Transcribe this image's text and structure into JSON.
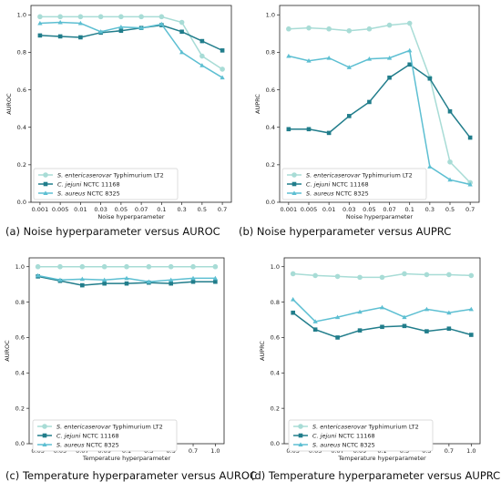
{
  "panels": [
    {
      "caption": "(a) Noise hyperparameter versus AUROC",
      "chart_data": {
        "type": "line",
        "xlabel": "Noise hyperparameter",
        "ylabel": "AUROC",
        "categories": [
          "0.001",
          "0.005",
          "0.01",
          "0.03",
          "0.05",
          "0.07",
          "0.1",
          "0.3",
          "0.5",
          "0.7"
        ],
        "ylim": [
          0,
          1.05
        ],
        "yticks": [
          "0.0",
          "0.2",
          "0.4",
          "0.6",
          "0.8",
          "1.0"
        ],
        "grid": false,
        "legend_position": "lower-left",
        "series": [
          {
            "name_italic": "S. entericaserovar",
            "name_rest": " Typhimurium LT2",
            "marker": "circle",
            "color": "#a8dcd6",
            "values": [
              0.99,
              0.99,
              0.99,
              0.99,
              0.99,
              0.99,
              0.99,
              0.96,
              0.78,
              0.71
            ]
          },
          {
            "name_italic": "C. jejuni",
            "name_rest": " NCTC 11168",
            "marker": "square",
            "color": "#217d8b",
            "values": [
              0.89,
              0.885,
              0.88,
              0.905,
              0.915,
              0.93,
              0.945,
              0.91,
              0.86,
              0.81
            ]
          },
          {
            "name_italic": "S. aureus",
            "name_rest": " NCTC 8325",
            "marker": "triangle",
            "color": "#5dbfd2",
            "values": [
              0.955,
              0.96,
              0.955,
              0.91,
              0.935,
              0.93,
              0.95,
              0.8,
              0.73,
              0.665
            ]
          }
        ]
      }
    },
    {
      "caption": "(b) Noise hyperparameter versus AUPRC",
      "chart_data": {
        "type": "line",
        "xlabel": "Noise hyperparameter",
        "ylabel": "AUPRC",
        "categories": [
          "0.001",
          "0.005",
          "0.01",
          "0.03",
          "0.05",
          "0.07",
          "0.1",
          "0.3",
          "0.5",
          "0.7"
        ],
        "ylim": [
          0.0,
          1.05
        ],
        "yticks": [
          "0.0",
          "0.2",
          "0.4",
          "0.6",
          "0.8",
          "1.0"
        ],
        "grid": false,
        "legend_position": "lower-left",
        "series": [
          {
            "name_italic": "S. entericaserovar",
            "name_rest": " Typhimurium LT2",
            "marker": "circle",
            "color": "#a8dcd6",
            "values": [
              0.925,
              0.93,
              0.925,
              0.915,
              0.925,
              0.945,
              0.955,
              0.665,
              0.215,
              0.105
            ]
          },
          {
            "name_italic": "C. jejuni",
            "name_rest": " NCTC 11168",
            "marker": "square",
            "color": "#217d8b",
            "values": [
              0.39,
              0.39,
              0.37,
              0.46,
              0.535,
              0.665,
              0.735,
              0.66,
              0.485,
              0.345
            ]
          },
          {
            "name_italic": "S. aureus",
            "name_rest": " NCTC 8325",
            "marker": "triangle",
            "color": "#5dbfd2",
            "values": [
              0.78,
              0.755,
              0.77,
              0.72,
              0.765,
              0.77,
              0.81,
              0.19,
              0.12,
              0.095
            ]
          }
        ]
      }
    },
    {
      "caption": "(c) Temperature hyperparameter versus AUROC",
      "chart_data": {
        "type": "line",
        "xlabel": "Temperature hyperparameter",
        "ylabel": "AUROC",
        "categories": [
          "0.03",
          "0.05",
          "0.07",
          "0.09",
          "0.1",
          "0.3",
          "0.5",
          "0.7",
          "1.0"
        ],
        "ylim": [
          0,
          1.05
        ],
        "yticks": [
          "0.0",
          "0.2",
          "0.4",
          "0.6",
          "0.8",
          "1.0"
        ],
        "grid": false,
        "legend_position": "lower-left",
        "series": [
          {
            "name_italic": "S. entericaserovar",
            "name_rest": " Typhimurium LT2",
            "marker": "circle",
            "color": "#a8dcd6",
            "values": [
              1.0,
              1.0,
              1.0,
              1.0,
              1.0,
              1.0,
              1.0,
              1.0,
              1.0
            ]
          },
          {
            "name_italic": "C. jejuni",
            "name_rest": " NCTC 11168",
            "marker": "square",
            "color": "#217d8b",
            "values": [
              0.945,
              0.92,
              0.895,
              0.905,
              0.905,
              0.91,
              0.905,
              0.915,
              0.915
            ]
          },
          {
            "name_italic": "S. aureus",
            "name_rest": " NCTC 8325",
            "marker": "triangle",
            "color": "#5dbfd2",
            "values": [
              0.95,
              0.925,
              0.93,
              0.925,
              0.935,
              0.915,
              0.925,
              0.935,
              0.935
            ]
          }
        ]
      }
    },
    {
      "caption": "(d) Temperature hyperparameter versus AUPRC",
      "chart_data": {
        "type": "line",
        "xlabel": "Temperature hyperparameter",
        "ylabel": "AUPRC",
        "categories": [
          "0.03",
          "0.05",
          "0.07",
          "0.09",
          "0.1",
          "0.3",
          "0.5",
          "0.7",
          "1.0"
        ],
        "ylim": [
          0,
          1.05
        ],
        "yticks": [
          "0.0",
          "0.2",
          "0.4",
          "0.6",
          "0.8",
          "1.0"
        ],
        "grid": false,
        "legend_position": "lower-left",
        "series": [
          {
            "name_italic": "S. entericaserovar",
            "name_rest": " Typhimurium LT2",
            "marker": "circle",
            "color": "#a8dcd6",
            "values": [
              0.96,
              0.95,
              0.945,
              0.94,
              0.94,
              0.96,
              0.955,
              0.955,
              0.95
            ]
          },
          {
            "name_italic": "C. jejuni",
            "name_rest": " NCTC 11168",
            "marker": "square",
            "color": "#217d8b",
            "values": [
              0.74,
              0.645,
              0.6,
              0.64,
              0.66,
              0.665,
              0.635,
              0.65,
              0.615
            ]
          },
          {
            "name_italic": "S. aureus",
            "name_rest": " NCTC 8325",
            "marker": "triangle",
            "color": "#5dbfd2",
            "values": [
              0.815,
              0.69,
              0.715,
              0.745,
              0.77,
              0.715,
              0.76,
              0.74,
              0.76
            ]
          }
        ]
      }
    }
  ]
}
